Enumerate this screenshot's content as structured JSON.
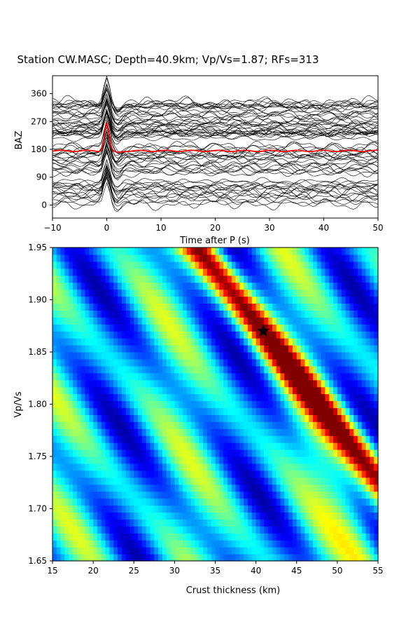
{
  "chart_data": [
    {
      "type": "line",
      "title": "Station CW.MASC; Depth=40.9km; Vp/Vs=1.87; RFs=313",
      "xlabel": "Time after P (s)",
      "ylabel": "BAZ",
      "xlim": [
        -10,
        50
      ],
      "ylim": [
        -42,
        418
      ],
      "x_ticks": [
        "−10",
        "0",
        "10",
        "20",
        "30",
        "40",
        "50"
      ],
      "y_ticks": [
        "0",
        "90",
        "180",
        "270",
        "360"
      ],
      "series": [
        {
          "color": "#ff0000",
          "description_points": {
            "x": [
              -10,
              -2,
              -1,
              0,
              1,
              2,
              5,
              10,
              20,
              30,
              40,
              50
            ],
            "y": [
              174,
              170,
              172,
              265,
              178,
              172,
              176,
              174,
              176,
              176,
              176,
              176
            ]
          }
        }
      ],
      "trace_count": 313,
      "trace_color": "#000000"
    },
    {
      "type": "heatmap",
      "xlabel": "Crust thickness (km)",
      "ylabel": "Vp/Vs",
      "xlim": [
        15,
        55
      ],
      "ylim": [
        1.65,
        1.95
      ],
      "x_ticks": [
        "15",
        "20",
        "25",
        "30",
        "35",
        "40",
        "45",
        "50",
        "55"
      ],
      "y_ticks": [
        "1.65",
        "1.70",
        "1.75",
        "1.80",
        "1.85",
        "1.90",
        "1.95"
      ],
      "colormap": "jet",
      "best_fit": {
        "thickness": 40.9,
        "vpvs": 1.87,
        "marker": "star-icon"
      }
    }
  ]
}
